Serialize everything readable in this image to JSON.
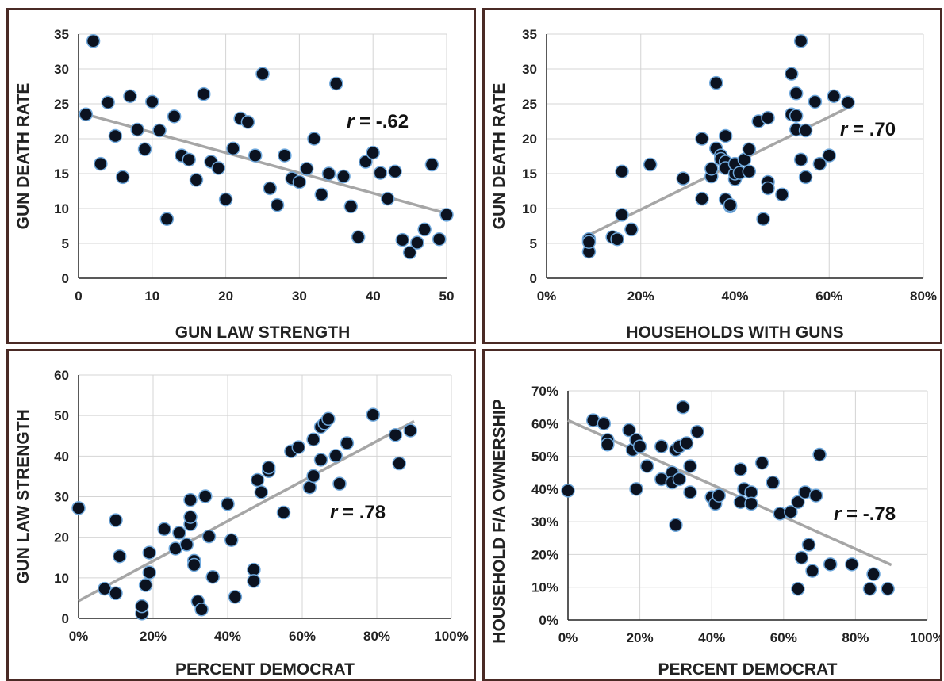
{
  "chart_data": [
    {
      "type": "scatter",
      "xlabel": "GUN LAW STRENGTH",
      "ylabel": "GUN DEATH RATE",
      "xlim": [
        0,
        50
      ],
      "ylim": [
        0,
        35
      ],
      "xticks": [
        "0",
        "10",
        "20",
        "30",
        "40",
        "50"
      ],
      "yticks": [
        "0",
        "5",
        "10",
        "15",
        "20",
        "25",
        "30",
        "35"
      ],
      "grid": true,
      "annotation": {
        "r_symbol": "r",
        "r_value": " = -.62"
      },
      "trendline": [
        [
          0,
          23.8
        ],
        [
          50,
          9.3
        ]
      ],
      "points": [
        [
          1,
          23.5
        ],
        [
          2,
          34
        ],
        [
          3,
          16.4
        ],
        [
          4,
          25.2
        ],
        [
          5,
          20.4
        ],
        [
          6,
          14.5
        ],
        [
          7,
          26.1
        ],
        [
          8,
          21.3
        ],
        [
          9,
          18.5
        ],
        [
          10,
          25.3
        ],
        [
          11,
          21.2
        ],
        [
          12,
          8.5
        ],
        [
          13,
          23.2
        ],
        [
          14,
          17.6
        ],
        [
          15,
          17
        ],
        [
          16,
          14.1
        ],
        [
          17,
          26.4
        ],
        [
          18,
          16.7
        ],
        [
          19,
          15.8
        ],
        [
          20,
          11.3
        ],
        [
          21,
          18.6
        ],
        [
          22,
          22.9
        ],
        [
          23,
          22.4
        ],
        [
          24,
          17.6
        ],
        [
          25,
          29.3
        ],
        [
          26,
          12.9
        ],
        [
          27,
          10.5
        ],
        [
          28,
          17.6
        ],
        [
          29,
          14.3
        ],
        [
          30,
          13.8
        ],
        [
          31,
          15.7
        ],
        [
          32,
          20
        ],
        [
          33,
          12
        ],
        [
          34,
          15
        ],
        [
          35,
          27.9
        ],
        [
          36,
          14.6
        ],
        [
          37,
          10.3
        ],
        [
          38,
          5.9
        ],
        [
          39,
          16.7
        ],
        [
          40,
          18
        ],
        [
          41,
          15.1
        ],
        [
          42,
          11.4
        ],
        [
          43,
          15.3
        ],
        [
          44,
          5.5
        ],
        [
          45,
          3.7
        ],
        [
          46,
          5.1
        ],
        [
          47,
          7
        ],
        [
          48,
          16.3
        ],
        [
          49,
          5.6
        ],
        [
          50,
          9.1
        ]
      ]
    },
    {
      "type": "scatter",
      "xlabel": "HOUSEHOLDS WITH GUNS",
      "ylabel": "GUN DEATH RATE",
      "xlim": [
        0,
        80
      ],
      "ylim": [
        0,
        35
      ],
      "xticks": [
        "0%",
        "20%",
        "40%",
        "60%",
        "80%"
      ],
      "yticks": [
        "0",
        "5",
        "10",
        "15",
        "20",
        "25",
        "30",
        "35"
      ],
      "grid": true,
      "annotation": {
        "r_symbol": "r",
        "r_value": " = .70"
      },
      "trendline": [
        [
          9,
          6.2
        ],
        [
          65,
          24.8
        ]
      ],
      "points": [
        [
          9,
          5.6
        ],
        [
          9,
          3.8
        ],
        [
          9,
          5.2
        ],
        [
          14,
          5.9
        ],
        [
          15,
          5.6
        ],
        [
          16,
          9.1
        ],
        [
          16,
          15.3
        ],
        [
          18,
          7
        ],
        [
          22,
          16.3
        ],
        [
          29,
          14.3
        ],
        [
          33,
          11.4
        ],
        [
          33,
          20
        ],
        [
          35,
          14.6
        ],
        [
          35,
          15.7
        ],
        [
          36,
          28
        ],
        [
          36,
          18.6
        ],
        [
          37,
          17.6
        ],
        [
          37,
          17.1
        ],
        [
          38,
          20.4
        ],
        [
          38,
          16.7
        ],
        [
          38,
          11.3
        ],
        [
          38,
          15.8
        ],
        [
          39,
          10.3
        ],
        [
          39,
          10.5
        ],
        [
          40,
          14.2
        ],
        [
          40,
          15
        ],
        [
          40,
          16.4
        ],
        [
          41,
          15.1
        ],
        [
          42,
          17
        ],
        [
          43,
          18.5
        ],
        [
          43,
          15.3
        ],
        [
          45,
          22.5
        ],
        [
          46,
          8.5
        ],
        [
          47,
          23
        ],
        [
          47,
          13.8
        ],
        [
          47,
          12.9
        ],
        [
          50,
          12
        ],
        [
          52,
          23.5
        ],
        [
          52,
          29.3
        ],
        [
          53,
          26.5
        ],
        [
          53,
          23.3
        ],
        [
          53,
          21.3
        ],
        [
          54,
          34
        ],
        [
          54,
          17
        ],
        [
          55,
          21.2
        ],
        [
          55,
          14.5
        ],
        [
          57,
          25.3
        ],
        [
          58,
          16.4
        ],
        [
          60,
          17.6
        ],
        [
          61,
          26.1
        ],
        [
          64,
          25.2
        ]
      ]
    },
    {
      "type": "scatter",
      "xlabel": "PERCENT DEMOCRAT",
      "ylabel": "GUN LAW STRENGTH",
      "xlim": [
        0,
        100
      ],
      "ylim": [
        0,
        60
      ],
      "xticks": [
        "0%",
        "20%",
        "40%",
        "60%",
        "80%",
        "100%"
      ],
      "yticks": [
        "0",
        "10",
        "20",
        "30",
        "40",
        "50",
        "60"
      ],
      "grid": true,
      "annotation": {
        "r_symbol": "r",
        "r_value": " = .78"
      },
      "trendline": [
        [
          0,
          4.3
        ],
        [
          90,
          48.6
        ]
      ],
      "points": [
        [
          0,
          27.2
        ],
        [
          7,
          7.3
        ],
        [
          10,
          6.2
        ],
        [
          10,
          24.2
        ],
        [
          11,
          15.3
        ],
        [
          17,
          1.2
        ],
        [
          17,
          3
        ],
        [
          18,
          8.2
        ],
        [
          19,
          16.2
        ],
        [
          19,
          11.3
        ],
        [
          23,
          22
        ],
        [
          26,
          17.2
        ],
        [
          27,
          21.1
        ],
        [
          29,
          18.2
        ],
        [
          30,
          23.2
        ],
        [
          30,
          25
        ],
        [
          30,
          29.2
        ],
        [
          31,
          14.2
        ],
        [
          31,
          13.2
        ],
        [
          32,
          4.2
        ],
        [
          33,
          2.2
        ],
        [
          34,
          30.1
        ],
        [
          35,
          20.2
        ],
        [
          36,
          10.2
        ],
        [
          40,
          28.2
        ],
        [
          41,
          19.3
        ],
        [
          42,
          5.3
        ],
        [
          47,
          12
        ],
        [
          47,
          9.2
        ],
        [
          48,
          34.1
        ],
        [
          49,
          31.1
        ],
        [
          51,
          36.3
        ],
        [
          51,
          37.2
        ],
        [
          55,
          26.1
        ],
        [
          57,
          41.2
        ],
        [
          59,
          42.2
        ],
        [
          62,
          32.3
        ],
        [
          63,
          35.1
        ],
        [
          63,
          44.1
        ],
        [
          65,
          39.1
        ],
        [
          65,
          47.2
        ],
        [
          66,
          48.1
        ],
        [
          67,
          49.2
        ],
        [
          69,
          40.1
        ],
        [
          70,
          33.2
        ],
        [
          72,
          43.2
        ],
        [
          79,
          50.2
        ],
        [
          85,
          45.2
        ],
        [
          86,
          38.2
        ],
        [
          89,
          46.3
        ]
      ]
    },
    {
      "type": "scatter",
      "xlabel": "PERCENT DEMOCRAT",
      "ylabel": "HOUSEHOLD F/A OWNERSHIP",
      "xlim": [
        0,
        100
      ],
      "ylim": [
        0,
        70
      ],
      "xticks": [
        "0%",
        "20%",
        "40%",
        "60%",
        "80%",
        "100%"
      ],
      "yticks": [
        "0%",
        "10%",
        "20%",
        "30%",
        "40%",
        "50%",
        "60%",
        "70%"
      ],
      "grid": true,
      "annotation": {
        "r_symbol": "r",
        "r_value": " = -.78"
      },
      "trendline": [
        [
          0,
          61
        ],
        [
          90,
          16.8
        ]
      ],
      "points": [
        [
          0,
          39.5
        ],
        [
          7,
          61
        ],
        [
          10,
          60
        ],
        [
          11,
          55
        ],
        [
          11,
          53.6
        ],
        [
          17,
          58
        ],
        [
          18,
          52
        ],
        [
          19,
          55
        ],
        [
          19,
          40
        ],
        [
          20,
          53
        ],
        [
          22,
          47
        ],
        [
          26,
          53
        ],
        [
          26,
          43
        ],
        [
          29,
          45
        ],
        [
          29,
          42
        ],
        [
          30,
          29
        ],
        [
          30,
          52
        ],
        [
          31,
          53
        ],
        [
          31,
          43
        ],
        [
          32,
          65
        ],
        [
          33,
          54
        ],
        [
          34,
          47
        ],
        [
          34,
          39
        ],
        [
          36,
          57.5
        ],
        [
          40,
          37.5
        ],
        [
          41,
          35.5
        ],
        [
          42,
          38
        ],
        [
          48,
          46
        ],
        [
          48,
          36
        ],
        [
          49,
          40
        ],
        [
          51,
          39
        ],
        [
          51,
          35.5
        ],
        [
          54,
          48
        ],
        [
          57,
          42
        ],
        [
          59,
          32.5
        ],
        [
          62,
          33
        ],
        [
          64,
          9.5
        ],
        [
          64,
          36
        ],
        [
          65,
          19
        ],
        [
          66,
          39
        ],
        [
          67,
          23
        ],
        [
          68,
          15
        ],
        [
          69,
          38
        ],
        [
          70,
          50.5
        ],
        [
          73,
          17
        ],
        [
          79,
          17
        ],
        [
          84,
          9.5
        ],
        [
          85,
          14
        ],
        [
          89,
          9.5
        ]
      ]
    }
  ]
}
